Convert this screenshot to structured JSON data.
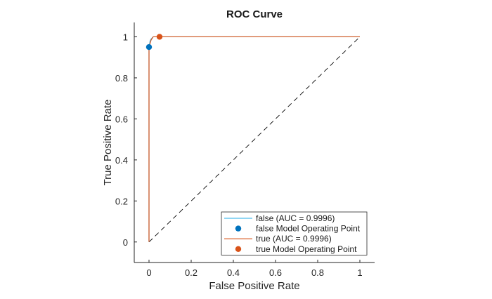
{
  "chart_data": {
    "type": "line",
    "title": "ROC Curve",
    "xlabel": "False Positive Rate",
    "ylabel": "True Positive Rate",
    "xlim": [
      -0.07,
      1.07
    ],
    "ylim": [
      -0.1,
      1.07
    ],
    "xticks": [
      0,
      0.2,
      0.4,
      0.6,
      0.8,
      1
    ],
    "xtick_labels": [
      "0",
      "0.2",
      "0.4",
      "0.6",
      "0.8",
      "1"
    ],
    "yticks": [
      0,
      0.2,
      0.4,
      0.6,
      0.8,
      1
    ],
    "ytick_labels": [
      "0",
      "0.2",
      "0.4",
      "0.6",
      "0.8",
      "1"
    ],
    "grid": false,
    "legend_position": "bottom-right",
    "series": [
      {
        "name": "false (AUC = 0.9996)",
        "kind": "line",
        "color": "#4DBEEE",
        "x": [
          0,
          0,
          0.005,
          0.01,
          0.02,
          0.05,
          1
        ],
        "y": [
          0,
          0.95,
          0.98,
          0.99,
          1,
          1,
          1
        ]
      },
      {
        "name": "false Model Operating Point",
        "kind": "point",
        "color": "#0072BD",
        "x": [
          0
        ],
        "y": [
          0.95
        ]
      },
      {
        "name": "true (AUC = 0.9996)",
        "kind": "line",
        "color": "#D95319",
        "x": [
          0,
          0,
          0.01,
          0.02,
          0.05,
          1
        ],
        "y": [
          0,
          0.95,
          0.985,
          1,
          1,
          1
        ]
      },
      {
        "name": "true Model Operating Point",
        "kind": "point",
        "color": "#D95319",
        "x": [
          0.05
        ],
        "y": [
          1
        ]
      }
    ],
    "reference_line": {
      "style": "dashed",
      "color": "#000000",
      "x": [
        0,
        1
      ],
      "y": [
        0,
        1
      ]
    }
  }
}
